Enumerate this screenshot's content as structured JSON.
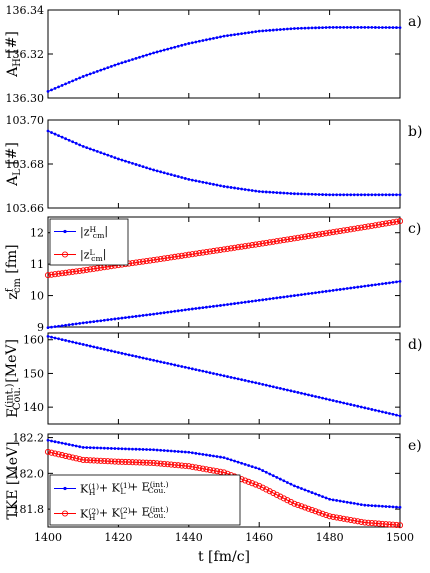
{
  "chart_data": [
    {
      "type": "line",
      "panel_label": "a)",
      "ylabel": "A_H [#]",
      "xlim": [
        1400,
        1500
      ],
      "ylim": [
        136.3,
        136.34
      ],
      "yticks": [
        "136.30",
        "136.32",
        "136.34"
      ],
      "xticks": [],
      "series": [
        {
          "color": "#0000ff",
          "marker": "dot",
          "x": [
            1400,
            1410,
            1420,
            1430,
            1440,
            1450,
            1460,
            1470,
            1480,
            1490,
            1500
          ],
          "y": [
            136.303,
            136.3098,
            136.3155,
            136.3205,
            136.3248,
            136.3281,
            136.3304,
            136.3316,
            136.3321,
            136.3321,
            136.332
          ]
        }
      ]
    },
    {
      "type": "line",
      "panel_label": "b)",
      "ylabel": "A_L [#]",
      "xlim": [
        1400,
        1500
      ],
      "ylim": [
        103.66,
        103.7
      ],
      "yticks": [
        "103.66",
        "103.68",
        "103.70"
      ],
      "xticks": [],
      "series": [
        {
          "color": "#0000ff",
          "marker": "dot",
          "x": [
            1400,
            1410,
            1420,
            1430,
            1440,
            1450,
            1460,
            1470,
            1480,
            1490,
            1500
          ],
          "y": [
            103.695,
            103.688,
            103.6823,
            103.6773,
            103.673,
            103.6698,
            103.6675,
            103.6665,
            103.666,
            103.666,
            103.666
          ]
        }
      ]
    },
    {
      "type": "line",
      "panel_label": "c)",
      "ylabel": "z^f_cm [fm]",
      "xlim": [
        1400,
        1500
      ],
      "ylim": [
        9,
        12.5
      ],
      "yticks": [
        "9",
        "10",
        "11",
        "12"
      ],
      "xticks": [],
      "legend": [
        "|z^H_cm|",
        "|z^L_cm|"
      ],
      "legend_position": "top-left",
      "series": [
        {
          "name": "|z^H_cm|",
          "color": "#0000ff",
          "marker": "dot",
          "x": [
            1400,
            1410,
            1420,
            1430,
            1440,
            1450,
            1460,
            1470,
            1480,
            1490,
            1500
          ],
          "y": [
            8.98,
            9.13,
            9.27,
            9.41,
            9.56,
            9.7,
            9.85,
            10.0,
            10.15,
            10.3,
            10.45
          ]
        },
        {
          "name": "|z^L_cm|",
          "color": "#ff0000",
          "marker": "circle",
          "x": [
            1400,
            1410,
            1420,
            1430,
            1440,
            1450,
            1460,
            1470,
            1480,
            1490,
            1500
          ],
          "y": [
            10.65,
            10.8,
            10.97,
            11.13,
            11.3,
            11.47,
            11.64,
            11.82,
            12.0,
            12.18,
            12.37
          ]
        }
      ]
    },
    {
      "type": "line",
      "panel_label": "d)",
      "ylabel": "E^(int.)_Cou. [MeV]",
      "xlim": [
        1400,
        1500
      ],
      "ylim": [
        135,
        162
      ],
      "yticks": [
        "140",
        "150",
        "160"
      ],
      "xticks": [],
      "series": [
        {
          "color": "#0000ff",
          "marker": "dot",
          "x": [
            1400,
            1410,
            1420,
            1430,
            1440,
            1450,
            1460,
            1470,
            1480,
            1490,
            1500
          ],
          "y": [
            161.0,
            158.6,
            156.2,
            153.9,
            151.6,
            149.3,
            147.0,
            144.6,
            142.2,
            139.8,
            137.4
          ]
        }
      ]
    },
    {
      "type": "line",
      "panel_label": "e)",
      "ylabel": "TKE [MeV]",
      "xlabel": "t [fm/c]",
      "xlim": [
        1400,
        1500
      ],
      "ylim": [
        181.7,
        182.22
      ],
      "yticks": [
        "181.8",
        "182.0",
        "182.2"
      ],
      "xticks": [
        "1400",
        "1420",
        "1440",
        "1460",
        "1480",
        "1500"
      ],
      "legend": [
        "K^(1)_H + K^(1)_L + E^(int.)_Cou.",
        "K^(2)_H + K^(2)_L + E^(int.)_Cou."
      ],
      "legend_position": "bottom-left",
      "series": [
        {
          "name": "K^(1)_H + K^(1)_L + E^(int.)_Cou.",
          "color": "#0000ff",
          "marker": "dot",
          "x": [
            1400,
            1410,
            1420,
            1430,
            1440,
            1450,
            1460,
            1470,
            1480,
            1490,
            1500
          ],
          "y": [
            182.185,
            182.145,
            182.138,
            182.132,
            182.118,
            182.088,
            182.025,
            181.93,
            181.855,
            181.822,
            181.81
          ]
        },
        {
          "name": "K^(2)_H + K^(2)_L + E^(int.)_Cou.",
          "color": "#ff0000",
          "marker": "circle",
          "x": [
            1400,
            1410,
            1420,
            1430,
            1440,
            1450,
            1460,
            1470,
            1480,
            1490,
            1500
          ],
          "y": [
            182.12,
            182.075,
            182.065,
            182.058,
            182.04,
            182.005,
            181.93,
            181.83,
            181.76,
            181.725,
            181.71
          ]
        }
      ]
    }
  ]
}
